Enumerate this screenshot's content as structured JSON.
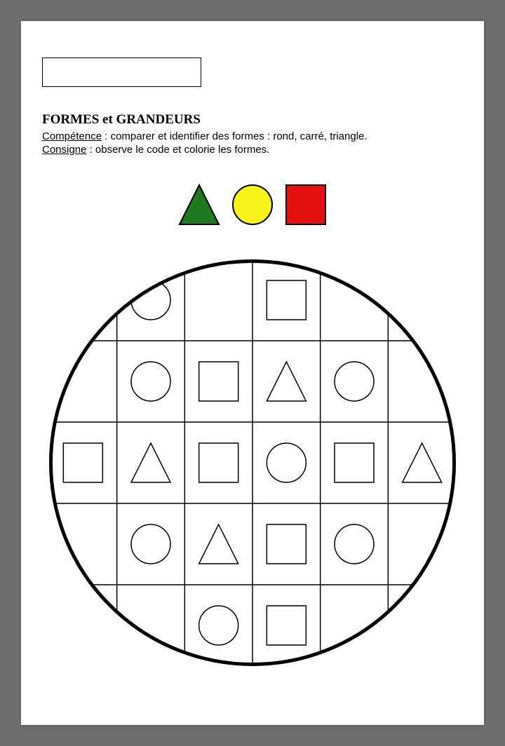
{
  "header": {
    "title": "FORMES et GRANDEURS",
    "competence_label": "Compétence",
    "competence_text": " : comparer et identifier des formes : rond, carré, triangle.",
    "consigne_label": "Consigne",
    "consigne_text": " : observe le code et colorie les formes."
  },
  "legend": {
    "shape_size": 56,
    "gap": 20,
    "stroke": "#000000",
    "stroke_width": 2,
    "items": [
      {
        "shape": "triangle",
        "fill": "#1f7a1f"
      },
      {
        "shape": "circle",
        "fill": "#f7f31a"
      },
      {
        "shape": "square",
        "fill": "#e31010"
      }
    ]
  },
  "worksheet": {
    "diameter": 580,
    "rows": 5,
    "cols": 6,
    "circle_stroke": "#000000",
    "circle_stroke_width": 5,
    "grid_stroke": "#000000",
    "grid_stroke_width": 1.5,
    "shape_stroke": "#000000",
    "shape_stroke_width": 1.5,
    "shape_fill": "none",
    "shape_size": 56,
    "cells": [
      [
        null,
        "circle",
        null,
        "square",
        null,
        null
      ],
      [
        null,
        "circle",
        "square",
        "triangle",
        "circle",
        null
      ],
      [
        "square",
        "triangle",
        "square",
        "circle",
        "square",
        "triangle"
      ],
      [
        null,
        "circle",
        "triangle",
        "square",
        "circle",
        null
      ],
      [
        null,
        null,
        "circle",
        "square",
        null,
        null
      ]
    ]
  }
}
